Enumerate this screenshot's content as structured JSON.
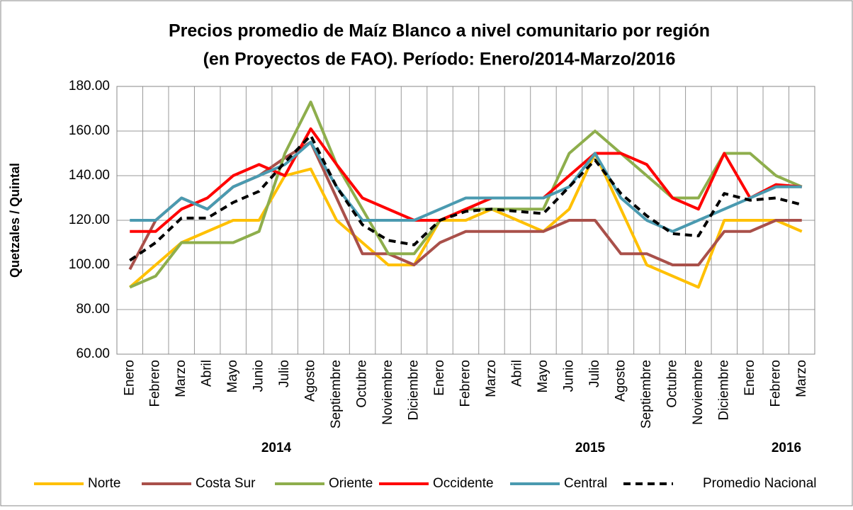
{
  "chart_data": {
    "type": "line",
    "title": [
      "Precios promedio de Maíz Blanco a nivel comunitario por región",
      "(en Proyectos de FAO). Período: Enero/2014-Marzo/2016"
    ],
    "y_label": "Quetzales / Quintal",
    "categories": [
      "Enero",
      "Febrero",
      "Marzo",
      "Abril",
      "Mayo",
      "Junio",
      "Julio",
      "Agosto",
      "Septiembre",
      "Octubre",
      "Noviembre",
      "Diciembre",
      "Enero",
      "Febrero",
      "Marzo",
      "Abril",
      "Mayo",
      "Junio",
      "Julio",
      "Agosto",
      "Septiembre",
      "Octubre",
      "Noviembre",
      "Diciembre",
      "Enero",
      "Febrero",
      "Marzo"
    ],
    "annotations": [
      "2014",
      "2015",
      "2016"
    ],
    "ylim": [
      60,
      180
    ],
    "yticks": [
      {
        "value": 60,
        "label": "60.00"
      },
      {
        "value": 80,
        "label": "80.00"
      },
      {
        "value": 100,
        "label": "100.00"
      },
      {
        "value": 120,
        "label": "120.00"
      },
      {
        "value": 140,
        "label": "140.00"
      },
      {
        "value": 160,
        "label": "160.00"
      },
      {
        "value": 180,
        "label": "180.00"
      }
    ],
    "grid": true,
    "legend": "bottom",
    "series": [
      {
        "name": "Norte",
        "color": "#ffc000",
        "values": [
          90,
          100,
          110,
          115,
          120,
          120,
          140,
          143,
          120,
          110,
          100,
          100,
          120,
          120,
          125,
          120,
          115,
          125,
          150,
          125,
          100,
          95,
          90,
          120,
          120,
          120,
          115
        ]
      },
      {
        "name": "Costa Sur",
        "color": "#a9504a",
        "values": [
          98,
          120,
          130,
          125,
          135,
          140,
          148,
          155,
          130,
          105,
          105,
          100,
          110,
          115,
          115,
          115,
          115,
          120,
          120,
          105,
          105,
          100,
          100,
          115,
          115,
          120,
          120
        ]
      },
      {
        "name": "Oriente",
        "color": "#8eae4c",
        "values": [
          90,
          95,
          110,
          110,
          110,
          115,
          150,
          173,
          145,
          125,
          105,
          105,
          120,
          125,
          125,
          125,
          125,
          150,
          160,
          150,
          140,
          130,
          130,
          150,
          150,
          140,
          135
        ]
      },
      {
        "name": "Occidente",
        "color": "#ff0000",
        "values": [
          115,
          115,
          125,
          130,
          140,
          145,
          140,
          161,
          145,
          130,
          125,
          120,
          120,
          125,
          130,
          130,
          130,
          140,
          150,
          150,
          145,
          130,
          125,
          150,
          130,
          136,
          135
        ]
      },
      {
        "name": "Central",
        "color": "#4a9ab0",
        "values": [
          120,
          120,
          130,
          125,
          135,
          140,
          145,
          155,
          135,
          120,
          120,
          120,
          125,
          130,
          130,
          130,
          130,
          135,
          150,
          130,
          120,
          115,
          120,
          125,
          130,
          135,
          135
        ]
      },
      {
        "name": "Promedio Nacional",
        "color": "#000000",
        "dashed": true,
        "values": [
          102,
          110,
          121,
          121,
          128,
          133,
          146,
          158,
          135,
          118,
          111,
          109,
          120,
          124,
          125,
          124,
          123,
          135,
          147,
          132,
          122,
          114,
          113,
          132,
          129,
          130,
          127
        ]
      }
    ]
  }
}
